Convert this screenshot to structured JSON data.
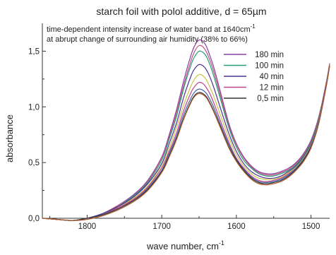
{
  "chart_data": {
    "type": "line",
    "title": "starch foil with polol additive,  d = 65µm",
    "annotation": {
      "line1": "time-dependent intensity increase of water band at 1640cm",
      "line1_sup": "-1",
      "line2": "at abrupt change of surrounding air humidity (38% to 66%)"
    },
    "xlabel": "wave number, cm",
    "xlabel_sup": "-1",
    "ylabel": "absorbance",
    "xlim": [
      1860,
      1475
    ],
    "ylim": [
      0,
      1.75
    ],
    "x_reversed": true,
    "grid": false,
    "legend_position": "top-right",
    "xticks": [
      {
        "value": 1800,
        "label": "1800"
      },
      {
        "value": 1700,
        "label": "1700"
      },
      {
        "value": 1600,
        "label": "1600"
      },
      {
        "value": 1500,
        "label": "1500"
      }
    ],
    "yticks": [
      {
        "value": 0.0,
        "label": "0,0"
      },
      {
        "value": 0.5,
        "label": "0,5"
      },
      {
        "value": 1.0,
        "label": "1,0"
      },
      {
        "value": 1.5,
        "label": "1,5"
      }
    ],
    "x": [
      1860,
      1840,
      1820,
      1800,
      1780,
      1760,
      1740,
      1720,
      1700,
      1690,
      1680,
      1670,
      1660,
      1655,
      1650,
      1645,
      1640,
      1635,
      1630,
      1620,
      1610,
      1600,
      1590,
      1580,
      1570,
      1560,
      1550,
      1540,
      1530,
      1520,
      1510,
      1500,
      1490,
      1480,
      1475
    ],
    "series": [
      {
        "name": "180 min",
        "color": "#8a3fa3",
        "values": [
          0.0,
          -0.01,
          -0.02,
          0.0,
          0.04,
          0.11,
          0.2,
          0.33,
          0.55,
          0.75,
          0.98,
          1.25,
          1.48,
          1.56,
          1.6,
          1.59,
          1.54,
          1.45,
          1.35,
          1.1,
          0.85,
          0.67,
          0.55,
          0.47,
          0.42,
          0.4,
          0.4,
          0.42,
          0.45,
          0.5,
          0.58,
          0.7,
          0.9,
          1.2,
          1.39
        ]
      },
      {
        "name": null,
        "color": "#b8577e",
        "values": [
          0.0,
          -0.01,
          -0.02,
          0.0,
          0.04,
          0.11,
          0.19,
          0.32,
          0.54,
          0.73,
          0.95,
          1.21,
          1.43,
          1.51,
          1.55,
          1.54,
          1.49,
          1.41,
          1.31,
          1.07,
          0.83,
          0.66,
          0.54,
          0.46,
          0.41,
          0.39,
          0.39,
          0.41,
          0.44,
          0.49,
          0.57,
          0.69,
          0.89,
          1.2,
          1.39
        ]
      },
      {
        "name": "100 min",
        "color": "#2e9a7a",
        "values": [
          0.0,
          -0.01,
          -0.02,
          0.0,
          0.04,
          0.1,
          0.19,
          0.31,
          0.52,
          0.71,
          0.92,
          1.18,
          1.39,
          1.46,
          1.5,
          1.49,
          1.45,
          1.37,
          1.27,
          1.04,
          0.81,
          0.64,
          0.52,
          0.45,
          0.4,
          0.38,
          0.38,
          0.4,
          0.43,
          0.48,
          0.56,
          0.68,
          0.88,
          1.19,
          1.38
        ]
      },
      {
        "name": "40 min",
        "color": "#4a3296",
        "values": [
          0.0,
          -0.01,
          -0.02,
          0.0,
          0.04,
          0.1,
          0.18,
          0.3,
          0.49,
          0.67,
          0.86,
          1.1,
          1.29,
          1.35,
          1.38,
          1.37,
          1.33,
          1.26,
          1.17,
          0.96,
          0.76,
          0.6,
          0.49,
          0.42,
          0.38,
          0.36,
          0.36,
          0.38,
          0.42,
          0.47,
          0.55,
          0.67,
          0.87,
          1.19,
          1.38
        ]
      },
      {
        "name": null,
        "color": "#c9c34a",
        "values": [
          0.0,
          -0.01,
          -0.02,
          0.0,
          0.03,
          0.09,
          0.17,
          0.28,
          0.47,
          0.63,
          0.82,
          1.03,
          1.2,
          1.26,
          1.29,
          1.28,
          1.24,
          1.17,
          1.09,
          0.9,
          0.72,
          0.57,
          0.47,
          0.4,
          0.36,
          0.35,
          0.35,
          0.37,
          0.41,
          0.46,
          0.54,
          0.66,
          0.86,
          1.18,
          1.38
        ]
      },
      {
        "name": "12 min",
        "color": "#c0408a",
        "values": [
          0.0,
          -0.01,
          -0.02,
          0.0,
          0.03,
          0.09,
          0.16,
          0.27,
          0.45,
          0.6,
          0.77,
          0.98,
          1.14,
          1.19,
          1.22,
          1.21,
          1.17,
          1.11,
          1.03,
          0.85,
          0.68,
          0.54,
          0.45,
          0.38,
          0.34,
          0.33,
          0.34,
          0.36,
          0.4,
          0.45,
          0.53,
          0.65,
          0.85,
          1.18,
          1.37
        ]
      },
      {
        "name": null,
        "color": "#3f63a8",
        "values": [
          0.0,
          -0.01,
          -0.02,
          0.0,
          0.03,
          0.08,
          0.15,
          0.26,
          0.43,
          0.58,
          0.74,
          0.94,
          1.09,
          1.14,
          1.16,
          1.15,
          1.12,
          1.06,
          0.99,
          0.82,
          0.66,
          0.53,
          0.44,
          0.37,
          0.33,
          0.32,
          0.33,
          0.35,
          0.39,
          0.45,
          0.53,
          0.65,
          0.85,
          1.17,
          1.37
        ]
      },
      {
        "name": "0,5 min",
        "color": "#333333",
        "values": [
          0.0,
          -0.01,
          -0.02,
          0.0,
          0.03,
          0.08,
          0.15,
          0.25,
          0.42,
          0.56,
          0.72,
          0.91,
          1.06,
          1.11,
          1.13,
          1.12,
          1.09,
          1.03,
          0.96,
          0.8,
          0.64,
          0.52,
          0.43,
          0.36,
          0.32,
          0.31,
          0.32,
          0.34,
          0.38,
          0.44,
          0.52,
          0.64,
          0.84,
          1.17,
          1.37
        ]
      },
      {
        "name": null,
        "color": "#b05a2a",
        "values": [
          0.0,
          -0.01,
          -0.02,
          -0.01,
          0.02,
          0.07,
          0.14,
          0.24,
          0.41,
          0.55,
          0.71,
          0.9,
          1.05,
          1.1,
          1.12,
          1.11,
          1.08,
          1.02,
          0.95,
          0.79,
          0.63,
          0.51,
          0.42,
          0.35,
          0.31,
          0.3,
          0.31,
          0.33,
          0.37,
          0.43,
          0.51,
          0.63,
          0.84,
          1.17,
          1.37
        ]
      }
    ]
  }
}
